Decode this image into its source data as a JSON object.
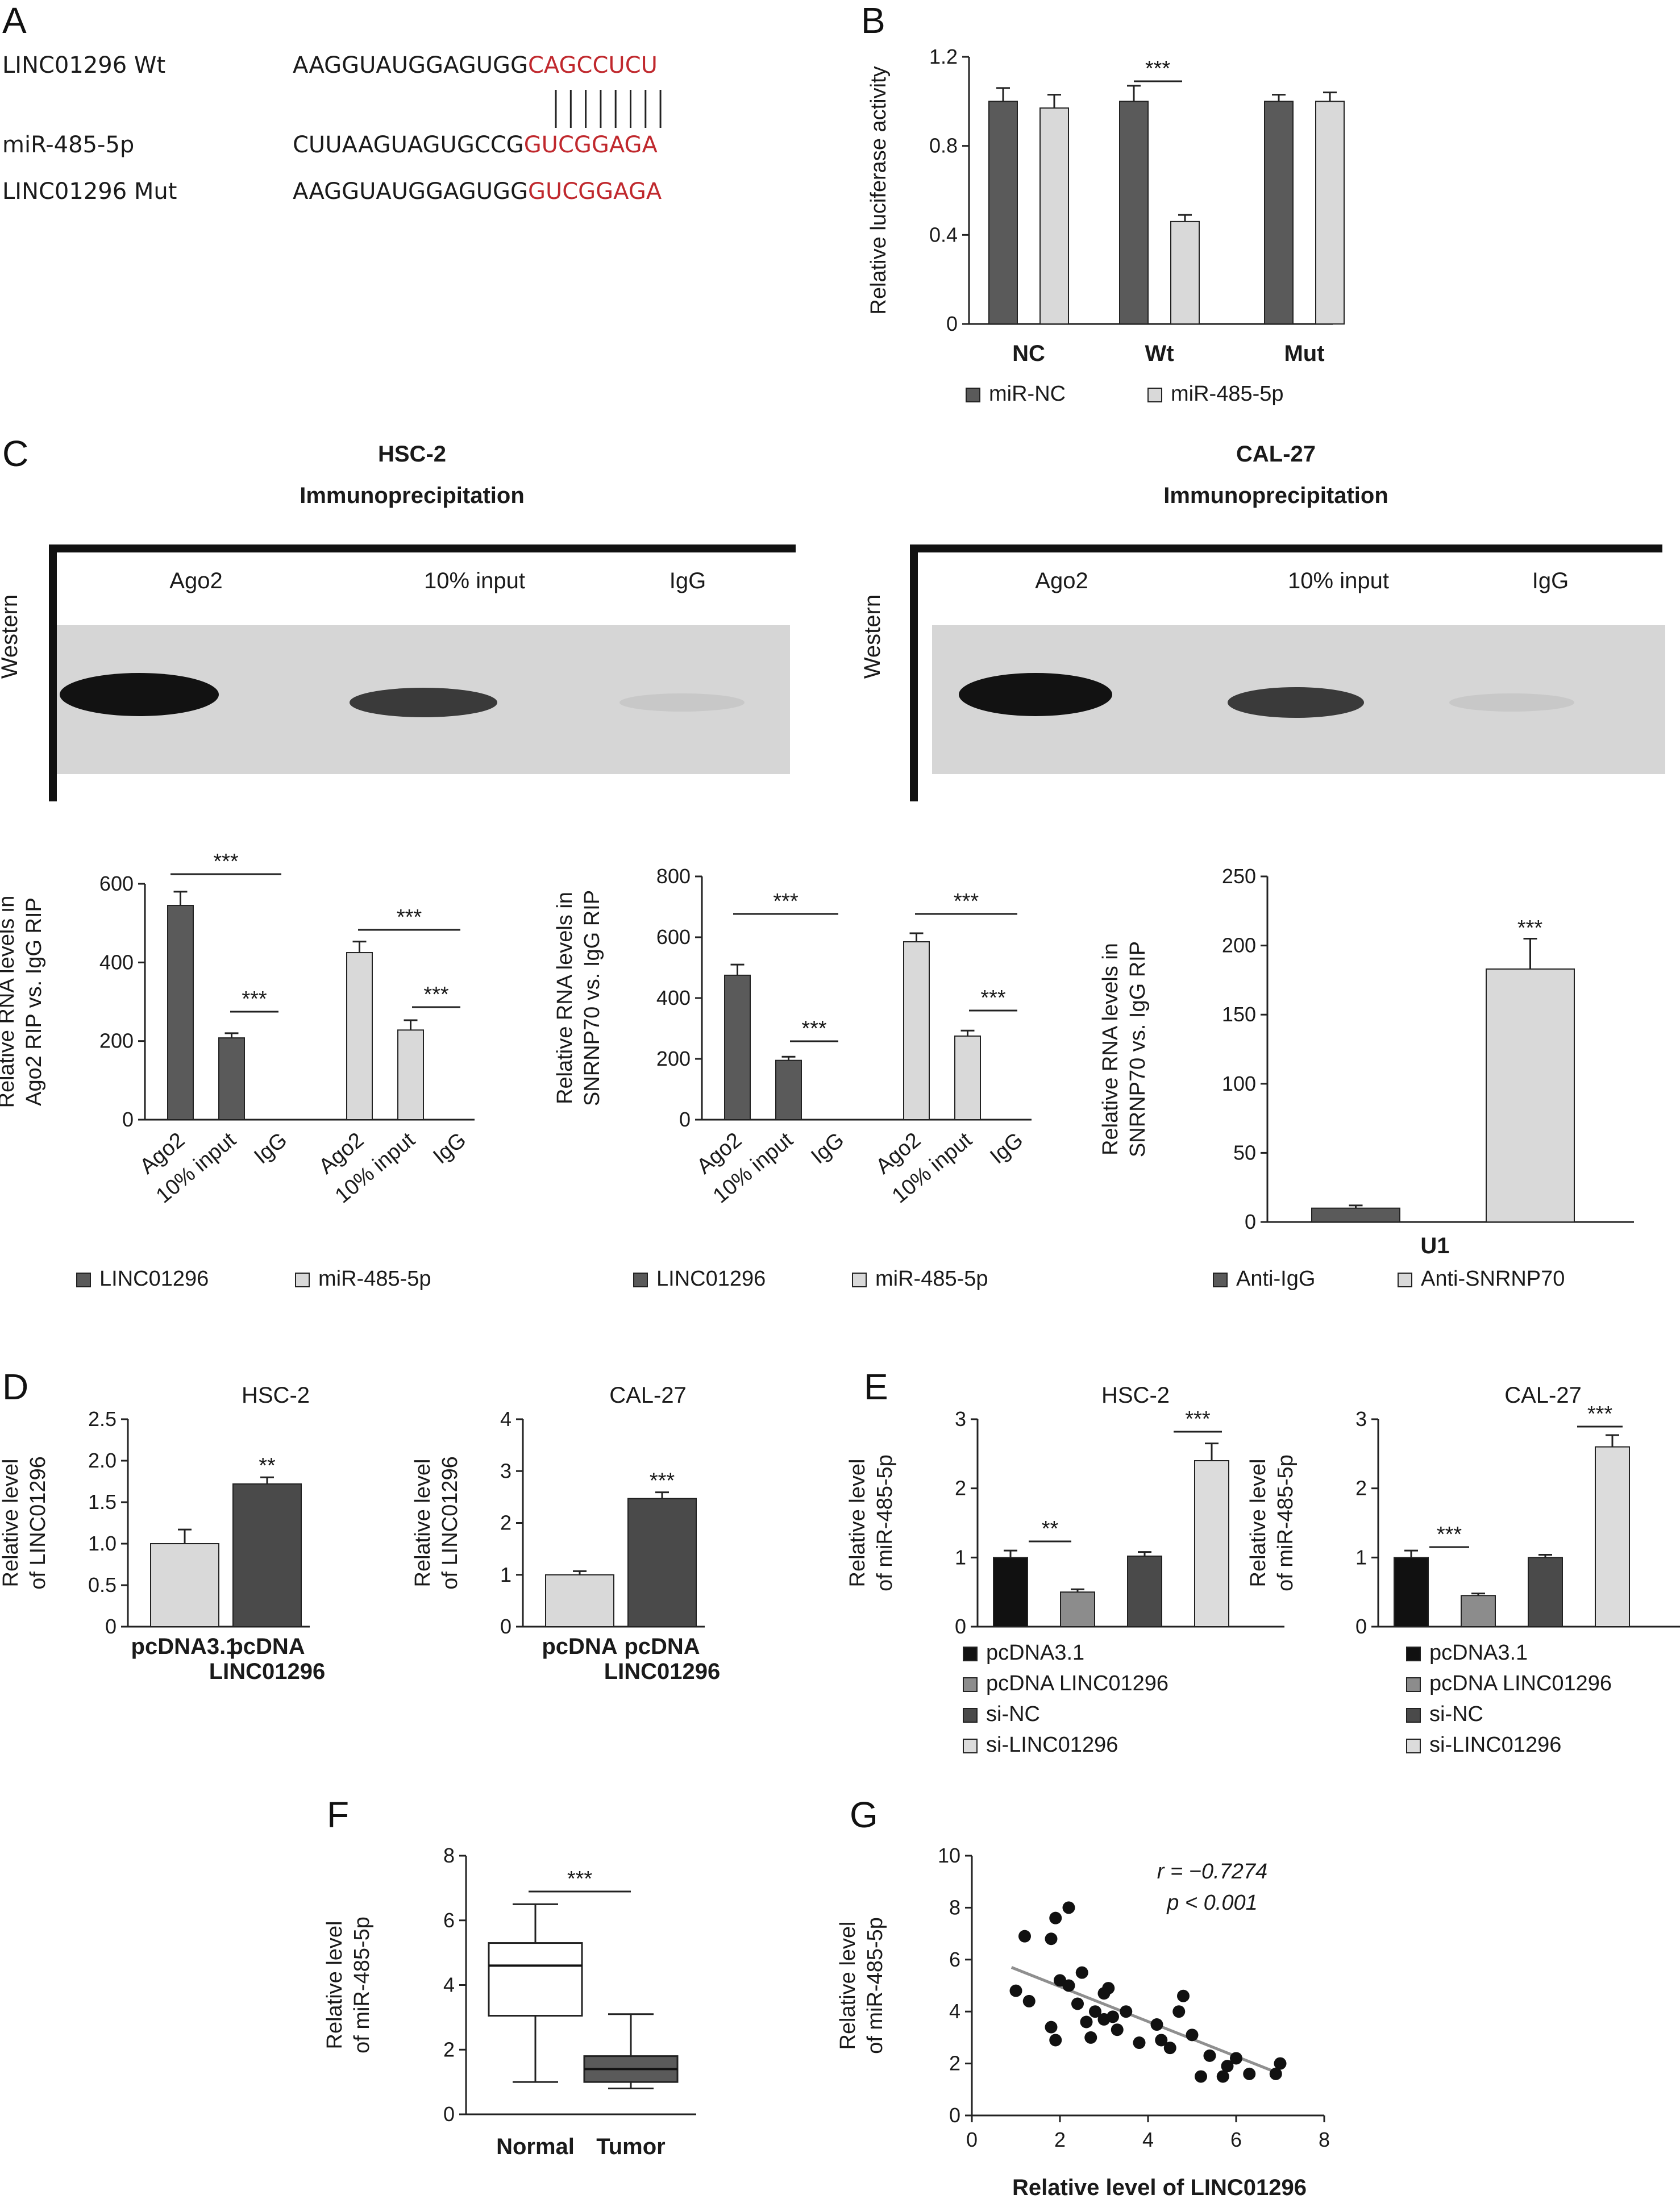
{
  "panels": {
    "A": {
      "letter": "A",
      "rows": [
        {
          "label": "LINC01296 Wt",
          "seq_black": "AAGGUAUGGAGUGG",
          "seq_red": "CAGCCUCU"
        },
        {
          "label": "miR-485-5p",
          "seq_black": "CUUAAGUAGUGCCG",
          "seq_red": "GUCGGAGA"
        },
        {
          "label": "LINC01296 Mut",
          "seq_black": "AAGGUAUGGAGUGG",
          "seq_red": "GUCGGAGA"
        }
      ],
      "pair_count": 8
    },
    "B_letter": "B",
    "C": {
      "letter": "C",
      "blots": [
        {
          "cell": "HSC-2",
          "subtitle": "Immunoprecipitation",
          "side_label": "Western",
          "lanes": [
            "Ago2",
            "10% input",
            "IgG"
          ]
        },
        {
          "cell": "CAL-27",
          "subtitle": "Immunoprecipitation",
          "side_label": "Western",
          "lanes": [
            "Ago2",
            "10% input",
            "IgG"
          ]
        }
      ]
    },
    "D_letter": "D",
    "E_letter": "E",
    "F_letter": "F",
    "G_letter": "G"
  },
  "colors": {
    "dark": "#5a5a5a",
    "light": "#d9d9d9",
    "black": "#111111",
    "mid": "#8c8c8c",
    "darker": "#4a4a4a",
    "lightest": "#dcdcdc",
    "red": "#c0282d",
    "regression": "#8f8f8f"
  },
  "chart_data": [
    {
      "id": "B",
      "type": "bar",
      "categories": [
        "NC",
        "Wt",
        "Mut"
      ],
      "series": [
        {
          "name": "miR-NC",
          "values": [
            1.0,
            1.0,
            1.0
          ],
          "errors": [
            0.06,
            0.07,
            0.03
          ]
        },
        {
          "name": "miR-485-5p",
          "values": [
            0.97,
            0.46,
            1.0
          ],
          "errors": [
            0.06,
            0.03,
            0.04
          ]
        }
      ],
      "ylabel": "Relative luciferase activity",
      "ylim": [
        0,
        1.2
      ],
      "yticks": [
        "0",
        "0.4",
        "0.8",
        "1.2"
      ],
      "annotations": [
        {
          "text": "***",
          "category": "Wt"
        }
      ]
    },
    {
      "id": "C1",
      "type": "bar",
      "groups": [
        {
          "name": "LINC01296",
          "categories": [
            "Ago2",
            "10% input",
            "IgG"
          ],
          "values": [
            545,
            208,
            0
          ],
          "errors": [
            35,
            12,
            0
          ]
        },
        {
          "name": "miR-485-5p",
          "categories": [
            "Ago2",
            "10% input",
            "IgG"
          ],
          "values": [
            425,
            228,
            0
          ],
          "errors": [
            28,
            25,
            0
          ]
        }
      ],
      "ylabel": "Relative RNA levels in Ago2 RIP vs. IgG RIP",
      "ylabel_lines": [
        "Relative RNA levels in",
        "Ago2 RIP vs. IgG RIP"
      ],
      "ylim": [
        0,
        600
      ],
      "yticks": [
        "0",
        "200",
        "400",
        "600"
      ],
      "annotations": [
        "***",
        "***",
        "***",
        "***"
      ]
    },
    {
      "id": "C2",
      "type": "bar",
      "groups": [
        {
          "name": "LINC01296",
          "categories": [
            "Ago2",
            "10% input",
            "IgG"
          ],
          "values": [
            475,
            195,
            0
          ],
          "errors": [
            35,
            12,
            0
          ]
        },
        {
          "name": "miR-485-5p",
          "categories": [
            "Ago2",
            "10% input",
            "IgG"
          ],
          "values": [
            585,
            275,
            0
          ],
          "errors": [
            28,
            18,
            0
          ]
        }
      ],
      "ylabel": "Relative RNA levels in SNRNP70 vs. IgG RIP",
      "ylabel_lines": [
        "Relative RNA levels in",
        "SNRNP70 vs. IgG RIP"
      ],
      "ylim": [
        0,
        800
      ],
      "yticks": [
        "0",
        "200",
        "400",
        "600",
        "800"
      ],
      "annotations": [
        "***",
        "***",
        "***",
        "***"
      ]
    },
    {
      "id": "C3",
      "type": "bar",
      "categories": [
        "U1"
      ],
      "series": [
        {
          "name": "Anti-IgG",
          "values": [
            10
          ],
          "errors": [
            2
          ]
        },
        {
          "name": "Anti-SNRNP70",
          "values": [
            183
          ],
          "errors": [
            22
          ]
        }
      ],
      "ylabel": "Relative RNA levels in SNRNP70 vs. IgG RIP",
      "ylabel_lines": [
        "Relative RNA levels in",
        "SNRNP70 vs. IgG RIP"
      ],
      "ylim": [
        0,
        250
      ],
      "yticks": [
        "0",
        "50",
        "100",
        "150",
        "200",
        "250"
      ],
      "annotations": [
        "***"
      ]
    },
    {
      "id": "D1",
      "type": "bar",
      "title": "HSC-2",
      "categories": [
        [
          "pcDNA3.1"
        ],
        [
          "pcDNA",
          "LINC01296"
        ]
      ],
      "values": [
        1.0,
        1.72
      ],
      "errors": [
        0.17,
        0.08
      ],
      "ylabel_lines": [
        "Relative level",
        "of LINC01296"
      ],
      "ylim": [
        0,
        2.5
      ],
      "yticks": [
        "0",
        "0.5",
        "1.0",
        "1.5",
        "2.0",
        "2.5"
      ],
      "annotations": [
        "**"
      ]
    },
    {
      "id": "D2",
      "type": "bar",
      "title": "CAL-27",
      "categories": [
        [
          "pcDNA"
        ],
        [
          "pcDNA",
          "LINC01296"
        ]
      ],
      "values": [
        1.0,
        2.47
      ],
      "errors": [
        0.07,
        0.12
      ],
      "ylabel_lines": [
        "Relative level",
        "of LINC01296"
      ],
      "ylim": [
        0,
        4
      ],
      "yticks": [
        "0",
        "1",
        "2",
        "3",
        "4"
      ],
      "annotations": [
        "***"
      ]
    },
    {
      "id": "E1",
      "type": "bar",
      "title": "HSC-2",
      "series": [
        {
          "name": "pcDNA3.1",
          "value": 1.0,
          "error": 0.1
        },
        {
          "name": "pcDNA LINC01296",
          "value": 0.5,
          "error": 0.04
        },
        {
          "name": "si-NC",
          "value": 1.02,
          "error": 0.06
        },
        {
          "name": "si-LINC01296",
          "value": 2.4,
          "error": 0.25
        }
      ],
      "ylabel_lines": [
        "Relative level",
        "of miR-485-5p"
      ],
      "ylim": [
        0,
        3
      ],
      "yticks": [
        "0",
        "1",
        "2",
        "3"
      ],
      "annotations": [
        "**",
        "***"
      ]
    },
    {
      "id": "E2",
      "type": "bar",
      "title": "CAL-27",
      "series": [
        {
          "name": "pcDNA3.1",
          "value": 1.0,
          "error": 0.1
        },
        {
          "name": "pcDNA LINC01296",
          "value": 0.45,
          "error": 0.03
        },
        {
          "name": "si-NC",
          "value": 1.0,
          "error": 0.04
        },
        {
          "name": "si-LINC01296",
          "value": 2.6,
          "error": 0.17
        }
      ],
      "ylabel_lines": [
        "Relative level",
        "of miR-485-5p"
      ],
      "ylim": [
        0,
        3
      ],
      "yticks": [
        "0",
        "1",
        "2",
        "3"
      ],
      "annotations": [
        "***",
        "***"
      ]
    },
    {
      "id": "F",
      "type": "box",
      "categories": [
        "Normal",
        "Tumor"
      ],
      "boxes": [
        {
          "min": 1.0,
          "q1": 3.05,
          "median": 4.6,
          "q3": 5.3,
          "max": 6.5
        },
        {
          "min": 0.8,
          "q1": 1.0,
          "median": 1.4,
          "q3": 1.8,
          "max": 3.1
        }
      ],
      "ylabel_lines": [
        "Relative level",
        "of miR-485-5p"
      ],
      "ylim": [
        0,
        8
      ],
      "yticks": [
        "0",
        "2",
        "4",
        "6",
        "8"
      ],
      "annotations": [
        "***"
      ]
    },
    {
      "id": "G",
      "type": "scatter",
      "points": [
        [
          1.0,
          4.8
        ],
        [
          1.2,
          6.9
        ],
        [
          1.3,
          4.4
        ],
        [
          1.8,
          6.8
        ],
        [
          1.8,
          3.4
        ],
        [
          1.9,
          7.6
        ],
        [
          2.0,
          5.2
        ],
        [
          2.2,
          8.0
        ],
        [
          2.2,
          5.0
        ],
        [
          2.4,
          4.3
        ],
        [
          2.5,
          5.5
        ],
        [
          2.6,
          3.6
        ],
        [
          2.7,
          3.0
        ],
        [
          2.8,
          4.0
        ],
        [
          3.0,
          4.7
        ],
        [
          3.0,
          3.7
        ],
        [
          3.1,
          4.9
        ],
        [
          3.2,
          3.8
        ],
        [
          3.3,
          3.3
        ],
        [
          3.5,
          4.0
        ],
        [
          3.8,
          2.8
        ],
        [
          4.2,
          3.5
        ],
        [
          4.3,
          2.9
        ],
        [
          4.5,
          2.6
        ],
        [
          4.7,
          4.0
        ],
        [
          4.8,
          4.6
        ],
        [
          5.0,
          3.1
        ],
        [
          5.2,
          1.5
        ],
        [
          5.4,
          2.3
        ],
        [
          5.8,
          1.9
        ],
        [
          6.0,
          2.2
        ],
        [
          6.3,
          1.6
        ],
        [
          6.9,
          1.6
        ],
        [
          7.0,
          2.0
        ],
        [
          1.9,
          2.9
        ],
        [
          5.7,
          1.5
        ]
      ],
      "trend": [
        [
          0.9,
          5.7
        ],
        [
          7.0,
          1.6
        ]
      ],
      "xlabel": "Relative level of LINC01296",
      "ylabel_lines": [
        "Relative level",
        "of miR-485-5p"
      ],
      "xlim": [
        0,
        8
      ],
      "ylim": [
        0,
        10
      ],
      "xticks": [
        "0",
        "2",
        "4",
        "6",
        "8"
      ],
      "yticks": [
        "0",
        "2",
        "4",
        "6",
        "8",
        "10"
      ],
      "annotations": [
        "r = −0.7274",
        "p < 0.001"
      ]
    }
  ]
}
